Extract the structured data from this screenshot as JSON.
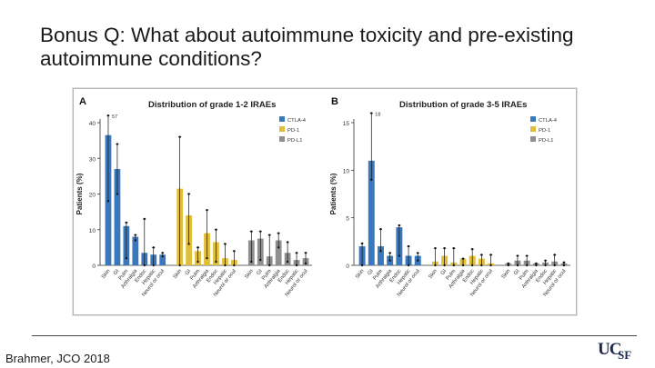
{
  "slide": {
    "title": "Bonus Q: What about autoimmune toxicity and pre-existing autoimmune conditions?",
    "citation": "Brahmer, JCO 2018",
    "logo_main": "UC",
    "logo_sub": "SF"
  },
  "legend_items": [
    {
      "label": "CTLA-4",
      "color": "#3a78be"
    },
    {
      "label": "PD-1",
      "color": "#e0be3a"
    },
    {
      "label": "PD-L1",
      "color": "#8f8f8f"
    }
  ],
  "chart_data": [
    {
      "type": "bar",
      "panel": "A",
      "title": "Distribution of grade 1-2 IRAEs",
      "ylabel": "Patients (%)",
      "ylim": [
        0,
        40
      ],
      "yticks": [
        0,
        10,
        20,
        30,
        40
      ],
      "groups": [
        "CTLA-4",
        "PD-1",
        "PD-L1"
      ],
      "categories": [
        "Skin",
        "GI",
        "Pulm",
        "Arthralgia",
        "Endoc",
        "Hepatic",
        "Neurol or ocul"
      ],
      "series": [
        {
          "name": "CTLA-4",
          "values": [
            36.5,
            27,
            11,
            8,
            3.5,
            3,
            3
          ],
          "err_high": [
            42,
            34,
            12,
            8.5,
            13,
            5,
            3.5
          ],
          "err_low": [
            18,
            20,
            2,
            7,
            0,
            0,
            2.5
          ]
        },
        {
          "name": "PD-1",
          "values": [
            21.5,
            14,
            4,
            9,
            6.5,
            2,
            1.5
          ],
          "err_high": [
            36,
            20,
            5,
            15.5,
            10,
            6,
            4
          ],
          "err_low": [
            0,
            6,
            1,
            2,
            1,
            0,
            0
          ]
        },
        {
          "name": "PD-L1",
          "values": [
            7,
            7.5,
            2.5,
            7,
            3.5,
            1.5,
            2
          ],
          "err_high": [
            9.5,
            9.5,
            8.5,
            9,
            6.5,
            3.5,
            3.5
          ],
          "err_low": [
            1,
            1.5,
            0,
            5,
            1,
            0,
            0.5
          ]
        }
      ],
      "annotation": "57"
    },
    {
      "type": "bar",
      "panel": "B",
      "title": "Distribution of grade 3-5 IRAEs",
      "ylabel": "Patients (%)",
      "ylim": [
        0,
        15
      ],
      "yticks": [
        0,
        5,
        10,
        15
      ],
      "groups": [
        "CTLA-4",
        "PD-1",
        "PD-L1"
      ],
      "categories": [
        "Skin",
        "GI",
        "Pulm",
        "Arthralgia",
        "Endoc",
        "Hepatic",
        "Neurol or ocul"
      ],
      "series": [
        {
          "name": "CTLA-4",
          "values": [
            2,
            11,
            2,
            1,
            4,
            1,
            1
          ],
          "err_high": [
            2.3,
            16,
            3.8,
            1.3,
            4.2,
            2,
            1.3
          ],
          "err_low": [
            0,
            9,
            1.5,
            0.5,
            1,
            0,
            0.5
          ]
        },
        {
          "name": "PD-1",
          "values": [
            0.4,
            1,
            0.3,
            0.7,
            1,
            0.7,
            0.2
          ],
          "err_high": [
            1.8,
            1.8,
            1.8,
            0.7,
            1.7,
            1.1,
            1.1
          ],
          "err_low": [
            0,
            0,
            0,
            0,
            0,
            0,
            0
          ]
        },
        {
          "name": "PD-L1",
          "values": [
            0.2,
            0.5,
            0.5,
            0.2,
            0.3,
            0.4,
            0.2
          ],
          "err_high": [
            0.2,
            1,
            1,
            0.2,
            0.5,
            1.1,
            0.3
          ],
          "err_low": [
            0,
            0,
            0,
            0,
            0,
            0,
            0
          ]
        }
      ],
      "annotation": "18"
    }
  ]
}
